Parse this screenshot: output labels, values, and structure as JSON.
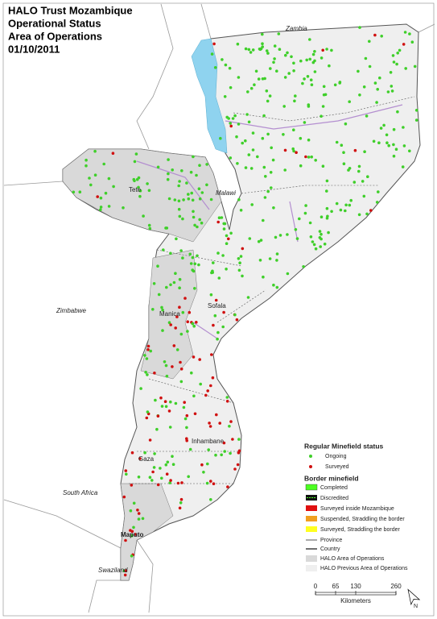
{
  "header": {
    "title_lines": [
      "HALO Trust Mozambique",
      "Operational Status",
      "Area of Operations",
      "01/10/2011"
    ]
  },
  "labels": {
    "countries": [
      "Zambia",
      "Malawi",
      "Zimbabwe",
      "South Africa",
      "Swaziland"
    ],
    "provinces": [
      "Tete",
      "Manica",
      "Sofala",
      "Inhambane",
      "Gaza",
      "Maputo"
    ]
  },
  "legend": {
    "regular_title": "Regular Minefield status",
    "regular_items": [
      "Ongoing",
      "Surveyed"
    ],
    "border_title": "Border minefield",
    "border_items": [
      "Completed",
      "Discredited",
      "Surveyed inside Mozambique",
      "Suspended, Straddling the border",
      "Surveyed, Straddling the border"
    ],
    "line_items": [
      "Province",
      "Country"
    ],
    "area_items": [
      "HALO Area of Operations",
      "HALO Previous Area of Operations"
    ]
  },
  "scale_bar": {
    "ticks": [
      0,
      65,
      130,
      260
    ],
    "unit": "Kilometers"
  },
  "north": "N"
}
